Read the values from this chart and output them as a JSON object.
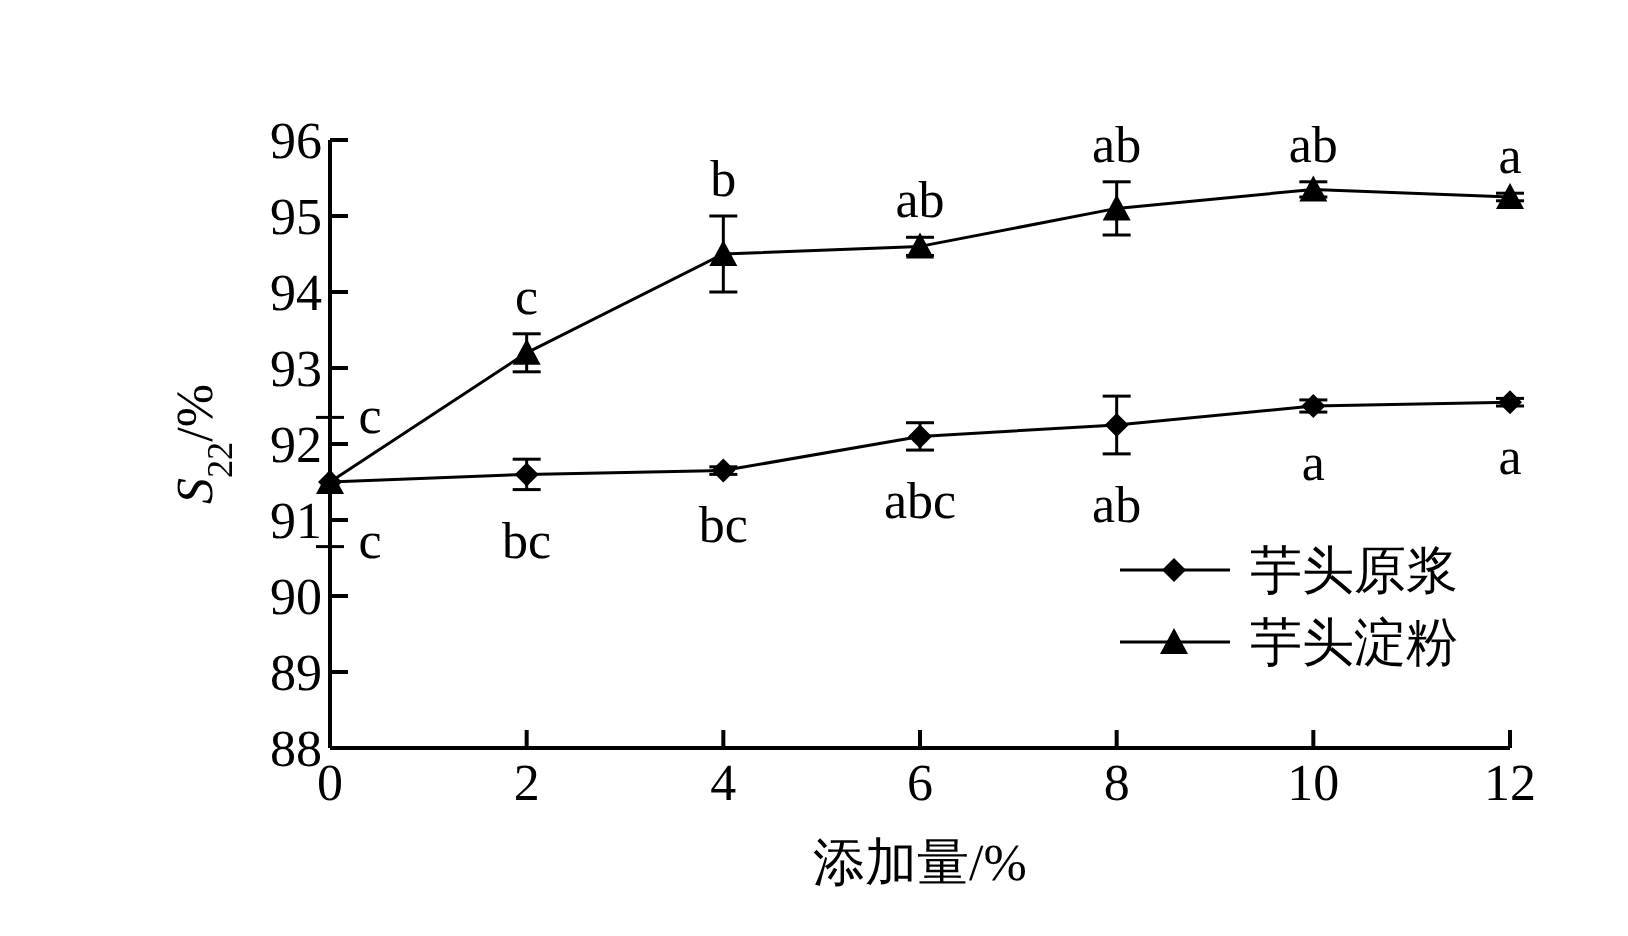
{
  "chart_data": {
    "type": "line",
    "xlabel": "添加量/%",
    "ylabel": "S$_{22}$/%",
    "x": [
      0,
      2,
      4,
      6,
      8,
      10,
      12
    ],
    "series": [
      {
        "name": "芋头原浆",
        "color": "#000000",
        "marker": "diamond",
        "values": [
          91.5,
          91.6,
          91.65,
          92.1,
          92.25,
          92.5,
          92.55
        ],
        "errors": [
          null,
          0.2,
          0.05,
          0.18,
          0.38,
          0.08,
          0.05
        ],
        "value_labels": [
          "c",
          "bc",
          "bc",
          "abc",
          "ab",
          "a",
          "a"
        ]
      },
      {
        "name": "芋头淀粉",
        "color": "#000000",
        "marker": "triangle",
        "values": [
          91.5,
          93.2,
          94.5,
          94.6,
          95.1,
          95.35,
          95.25
        ],
        "errors": [
          0.85,
          0.25,
          0.5,
          0.12,
          0.35,
          0.1,
          0.05
        ],
        "value_labels": [
          "c",
          "c",
          "b",
          "ab",
          "ab",
          "ab",
          "a"
        ]
      }
    ],
    "xlim": [
      0,
      12
    ],
    "xticks": [
      0,
      2,
      4,
      6,
      8,
      10,
      12
    ],
    "ylim": [
      88,
      96
    ],
    "yticks": [
      88,
      89,
      90,
      91,
      92,
      93,
      94,
      95,
      96
    ],
    "legend": "bottom right",
    "grid": false,
    "line_style": "solid"
  }
}
